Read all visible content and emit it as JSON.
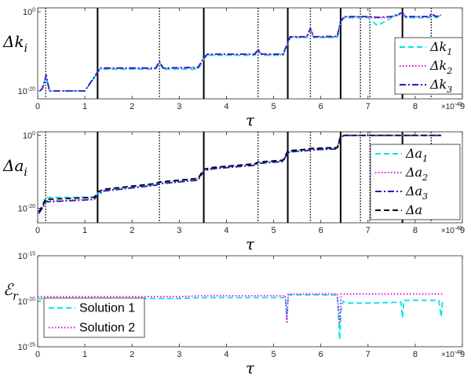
{
  "chart_data": [
    {
      "type": "line",
      "ylabel": "Δk_i",
      "xlabel": "τ",
      "x_multiplier": "×10^-40",
      "xlim": [
        0,
        9
      ],
      "ylog_range": [
        -22,
        1
      ],
      "yticks": [
        {
          "value": -20,
          "label": "10^-20"
        },
        {
          "value": 0,
          "label": "10^0"
        }
      ],
      "xticks": [
        "0",
        "1",
        "2",
        "3",
        "4",
        "5",
        "6",
        "7",
        "8",
        "9"
      ],
      "vlines_solid": [
        1.27,
        3.52,
        5.3,
        6.42,
        7.73
      ],
      "vlines_dotted": [
        0.17,
        2.58,
        4.67,
        5.78,
        6.84,
        7.04,
        8.34
      ],
      "legend": {
        "position": "right",
        "items": [
          "Δk_1",
          "Δk_2",
          "Δk_3"
        ]
      },
      "series": [
        {
          "name": "Δk_1",
          "color": "#00e5e5",
          "dash": "dashed",
          "x": [
            0.05,
            0.1,
            0.18,
            0.25,
            1.0,
            1.27,
            1.32,
            2.5,
            2.58,
            2.66,
            3.4,
            3.52,
            3.6,
            4.6,
            4.67,
            4.75,
            5.2,
            5.3,
            5.35,
            5.7,
            5.78,
            5.85,
            6.35,
            6.42,
            6.5,
            7.0,
            7.2,
            7.5,
            7.73,
            7.8,
            8.3,
            8.34,
            8.45,
            8.55
          ],
          "y": [
            -20,
            -19.5,
            -16.5,
            -20,
            -20,
            -15.5,
            -14.5,
            -14.5,
            -12.8,
            -14.5,
            -14.5,
            -12,
            -11,
            -11,
            -9.8,
            -11,
            -11,
            -8,
            -6.5,
            -6.5,
            -4.5,
            -6.5,
            -6.5,
            -2.5,
            -1.5,
            -1.5,
            -3.5,
            -1.5,
            -0.4,
            -1.5,
            -1.5,
            -0.7,
            -1.5,
            -1
          ]
        },
        {
          "name": "Δk_2",
          "color": "#e600e6",
          "dash": "dotted",
          "x": [
            0.05,
            0.1,
            0.18,
            0.25,
            1.0,
            1.27,
            1.32,
            2.5,
            2.58,
            2.66,
            3.4,
            3.52,
            3.6,
            4.6,
            4.67,
            4.75,
            5.2,
            5.3,
            5.35,
            5.7,
            5.78,
            5.85,
            6.35,
            6.42,
            6.5,
            7.0,
            7.2,
            7.5,
            7.73,
            7.8,
            8.3,
            8.34,
            8.45,
            8.55
          ],
          "y": [
            -20,
            -19.4,
            -16.3,
            -20,
            -20,
            -15.4,
            -14.3,
            -14.3,
            -12.7,
            -14.3,
            -14.2,
            -11.8,
            -10.8,
            -10.8,
            -9.7,
            -10.8,
            -10.8,
            -7.9,
            -6.4,
            -6.4,
            -4.3,
            -6.4,
            -6.3,
            -2.4,
            -1.3,
            -1.3,
            -1.6,
            -1.3,
            -0.3,
            -1.3,
            -1.3,
            -0.6,
            -1.3,
            -0.9
          ]
        },
        {
          "name": "Δk_3",
          "color": "#1f1fbf",
          "dash": "dashdot",
          "x": [
            0.05,
            0.1,
            0.18,
            0.25,
            1.0,
            1.27,
            1.32,
            2.5,
            2.58,
            2.66,
            3.4,
            3.52,
            3.6,
            4.6,
            4.67,
            4.75,
            5.2,
            5.3,
            5.35,
            5.7,
            5.78,
            5.85,
            6.35,
            6.42,
            6.5,
            7.0,
            7.2,
            7.5,
            7.73,
            7.8,
            8.3,
            8.34,
            8.45,
            8.55
          ],
          "y": [
            -20,
            -19.3,
            -16,
            -20,
            -20,
            -15.2,
            -14.2,
            -14.2,
            -12.5,
            -14.2,
            -14,
            -11.6,
            -10.7,
            -10.7,
            -9.5,
            -10.7,
            -10.7,
            -7.8,
            -6.3,
            -6.3,
            -4.2,
            -6.3,
            -6.2,
            -2.3,
            -1.2,
            -1.2,
            -1.4,
            -1.2,
            -0.2,
            -1.2,
            -1.2,
            -0.5,
            -1.2,
            -0.8
          ]
        }
      ]
    },
    {
      "type": "line",
      "ylabel": "Δa_i",
      "xlabel": "τ",
      "x_multiplier": "×10^-40",
      "xlim": [
        0,
        9
      ],
      "ylog_range": [
        -24,
        1
      ],
      "yticks": [
        {
          "value": -20,
          "label": "10^-20"
        },
        {
          "value": 0,
          "label": "10^0"
        }
      ],
      "xticks": [
        "0",
        "1",
        "2",
        "3",
        "4",
        "5",
        "6",
        "7",
        "8",
        "9"
      ],
      "vlines_solid": [
        1.27,
        3.52,
        5.3,
        6.42,
        7.73
      ],
      "vlines_dotted": [
        0.17,
        2.58,
        4.67,
        5.78,
        6.84,
        7.04,
        8.34
      ],
      "legend": {
        "position": "right",
        "items": [
          "Δa_1",
          "Δa_2",
          "Δa_3",
          "Δa"
        ]
      },
      "series": [
        {
          "name": "Δa_1",
          "color": "#00e5e5",
          "dash": "dashed",
          "x": [
            0.02,
            0.1,
            0.17,
            0.3,
            1.2,
            1.27,
            1.4,
            2.5,
            2.58,
            3.4,
            3.52,
            3.7,
            4.6,
            4.67,
            5.2,
            5.3,
            5.4,
            5.7,
            5.78,
            6.35,
            6.42,
            6.5,
            7.5,
            8.55
          ],
          "y": [
            -21,
            -19,
            -17,
            -17,
            -17,
            -15.8,
            -15,
            -13.5,
            -13,
            -12,
            -9.5,
            -9,
            -8,
            -7.5,
            -7,
            -4.5,
            -4.3,
            -4,
            -3.8,
            -3.5,
            -0.3,
            0,
            0,
            0
          ]
        },
        {
          "name": "Δa_2",
          "color": "#e600e6",
          "dash": "dotted",
          "x": [
            0.02,
            0.1,
            0.17,
            0.3,
            1.2,
            1.27,
            1.4,
            2.5,
            2.58,
            3.4,
            3.52,
            3.7,
            4.6,
            4.67,
            5.2,
            5.3,
            5.4,
            5.7,
            5.78,
            6.35,
            6.42,
            6.5,
            7.5,
            8.55
          ],
          "y": [
            -21.5,
            -20,
            -18,
            -18,
            -17.5,
            -16.2,
            -15.2,
            -13.6,
            -13.2,
            -12.2,
            -9.7,
            -9.1,
            -8.1,
            -7.6,
            -7.1,
            -4.6,
            -4.4,
            -4.1,
            -3.9,
            -3.6,
            -0.4,
            0,
            0,
            0
          ]
        },
        {
          "name": "Δa_3",
          "color": "#1f1fbf",
          "dash": "dashdot",
          "x": [
            0.02,
            0.1,
            0.17,
            0.3,
            1.2,
            1.27,
            1.4,
            2.5,
            2.58,
            3.4,
            3.52,
            3.7,
            4.6,
            4.67,
            5.2,
            5.3,
            5.4,
            5.7,
            5.78,
            6.35,
            6.42,
            6.5,
            7.5,
            8.55
          ],
          "y": [
            -21.5,
            -20,
            -18.2,
            -18.2,
            -17.6,
            -16.3,
            -15.3,
            -13.7,
            -13.3,
            -12.3,
            -9.8,
            -9.2,
            -8.2,
            -7.7,
            -7.2,
            -4.7,
            -4.5,
            -4.2,
            -4,
            -3.7,
            -0.5,
            0,
            0,
            0
          ]
        },
        {
          "name": "Δa",
          "color": "#000000",
          "dash": "dashed",
          "x": [
            0.02,
            0.1,
            0.17,
            0.3,
            1.2,
            1.27,
            1.4,
            2.5,
            2.58,
            3.4,
            3.52,
            3.7,
            4.6,
            4.67,
            5.2,
            5.3,
            5.4,
            5.7,
            5.78,
            6.35,
            6.42,
            6.5,
            7.5,
            8.55
          ],
          "y": [
            -21,
            -19.5,
            -17.5,
            -17.5,
            -17,
            -15.5,
            -14.8,
            -13.2,
            -12.8,
            -11.8,
            -9.3,
            -8.8,
            -7.8,
            -7.3,
            -6.8,
            -4.3,
            -4.1,
            -3.8,
            -3.6,
            -3.3,
            -0.2,
            0,
            0,
            0
          ]
        }
      ]
    },
    {
      "type": "line",
      "ylabel": "ℰ_r",
      "xlabel": "τ",
      "x_multiplier": "×10^-40",
      "xlim": [
        0,
        9
      ],
      "ylog_range": [
        -25,
        -15
      ],
      "yticks": [
        {
          "value": -25,
          "label": "10^-25"
        },
        {
          "value": -20,
          "label": "10^-20"
        },
        {
          "value": -15,
          "label": "10^-15"
        }
      ],
      "xticks": [
        "0",
        "1",
        "2",
        "3",
        "4",
        "5",
        "6",
        "7",
        "8",
        "9"
      ],
      "legend": {
        "position": "bottom-left",
        "items": [
          "Solution 1",
          "Solution 2"
        ]
      },
      "series": [
        {
          "name": "Solution 1",
          "color": "#00e5e5",
          "dash": "dashed",
          "x": [
            0,
            1,
            2,
            3,
            3.5,
            4,
            5,
            5.25,
            5.28,
            5.31,
            5.35,
            6,
            6.35,
            6.4,
            6.43,
            6.47,
            6.55,
            7,
            7.7,
            7.73,
            7.76,
            8.5,
            8.55,
            8.58
          ],
          "y": [
            -19.7,
            -19.7,
            -19.7,
            -19.7,
            -19.6,
            -19.6,
            -19.6,
            -19.6,
            -22,
            -19.3,
            -19.3,
            -19.3,
            -19.3,
            -24.2,
            -21,
            -20,
            -20.2,
            -20.2,
            -20.1,
            -21.8,
            -19.9,
            -19.9,
            -21.7,
            -19.9
          ]
        },
        {
          "name": "Solution 2",
          "color": "#e600e6",
          "dash": "dotted",
          "x": [
            0,
            1,
            2,
            3,
            3.5,
            4,
            5,
            5.25,
            5.28,
            5.31,
            5.35,
            6,
            6.35,
            6.4,
            6.43,
            6.47,
            6.55,
            7,
            7.7,
            7.73,
            7.76,
            8.5,
            8.55,
            8.58
          ],
          "y": [
            -19.5,
            -19.5,
            -19.5,
            -19.5,
            -19.4,
            -19.4,
            -19.4,
            -19.4,
            -22.3,
            -19.2,
            -19.2,
            -19.2,
            -19.2,
            -22.5,
            -19.2,
            -19.2,
            -19.2,
            -19.2,
            -19.2,
            -19.2,
            -19.2,
            -19.2,
            -19.2,
            -19.2
          ]
        }
      ]
    }
  ]
}
